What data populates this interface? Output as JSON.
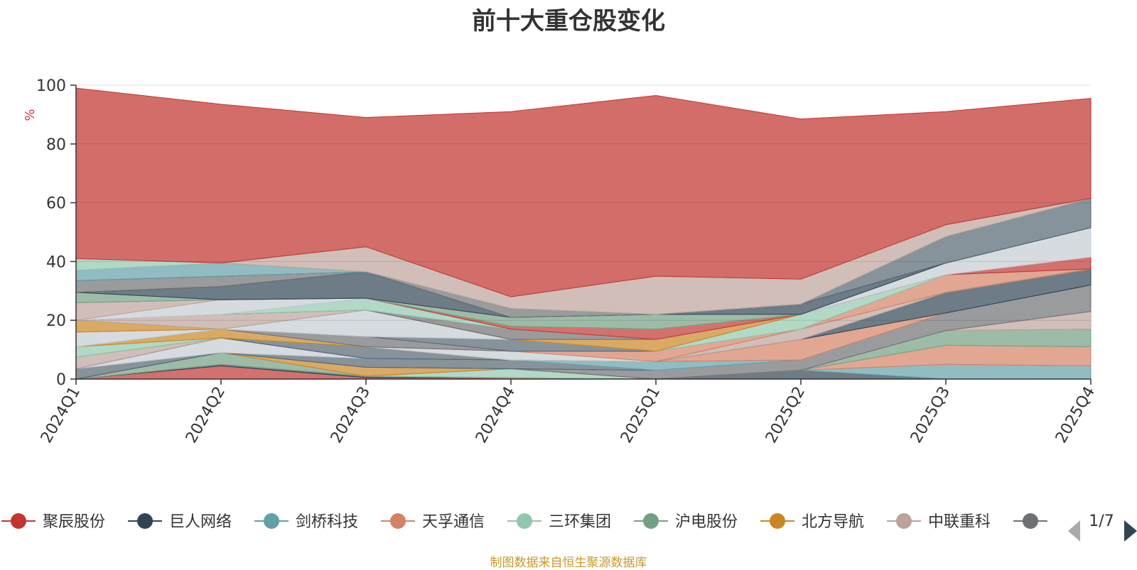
{
  "chart_data": {
    "type": "area",
    "title": "前十大重仓股变化",
    "ylabel": "%",
    "ylim": [
      0,
      100
    ],
    "yticks": [
      0,
      20,
      40,
      60,
      80,
      100
    ],
    "categories": [
      "2024Q1",
      "2024Q2",
      "2024Q3",
      "2024Q4",
      "2025Q1",
      "2025Q2",
      "2025Q3",
      "2025Q4"
    ],
    "grid": true,
    "stacked": true,
    "series": [
      {
        "name": "聚辰股份",
        "color": "#c23531",
        "values": [
          0,
          4.5,
          0.5,
          0.5,
          0,
          0,
          0,
          0
        ]
      },
      {
        "name": "巨人网络",
        "color": "#2f4554",
        "values": [
          0,
          0.5,
          0.5,
          0,
          0,
          3,
          0,
          0
        ]
      },
      {
        "name": "剑桥科技",
        "color": "#61a0a8",
        "values": [
          0,
          0,
          0,
          0,
          0,
          0,
          5,
          4.5
        ]
      },
      {
        "name": "天孚通信",
        "color": "#d48265",
        "values": [
          0,
          0,
          0,
          0,
          0,
          0,
          6.5,
          6.5
        ]
      },
      {
        "name": "三环集团",
        "color": "#91c7ae",
        "values": [
          0,
          0,
          0,
          3,
          0,
          0,
          0,
          0
        ]
      },
      {
        "name": "沪电股份",
        "color": "#749f83",
        "values": [
          0,
          4,
          0,
          0,
          0,
          0,
          5,
          6
        ]
      },
      {
        "name": "北方导航",
        "color": "#ca8622",
        "values": [
          0,
          0,
          3,
          0,
          0,
          0,
          0,
          0
        ]
      },
      {
        "name": "中联重科",
        "color": "#bda29a",
        "values": [
          0,
          0,
          0,
          0,
          0,
          0,
          0,
          6
        ]
      },
      {
        "name": "",
        "color": "#6e7074",
        "values": [
          0,
          0,
          0,
          0,
          3,
          3.5,
          6,
          9
        ]
      },
      {
        "name": "",
        "color": "#546570",
        "values": [
          3.5,
          0,
          3,
          3,
          0,
          0,
          0,
          0
        ]
      },
      {
        "name": "",
        "color": "#c4ccd3",
        "values": [
          0,
          5,
          0,
          0,
          0,
          0,
          0,
          0
        ]
      },
      {
        "name": "",
        "color": "#61a0a8",
        "values": [
          0,
          0,
          0,
          0,
          3,
          0,
          0,
          0
        ]
      },
      {
        "name": "",
        "color": "#d48265",
        "values": [
          0,
          0,
          0,
          0,
          0,
          7,
          0,
          0
        ]
      },
      {
        "name": "",
        "color": "#2f4554",
        "values": [
          0,
          0,
          0,
          0,
          0,
          0,
          7,
          5.5
        ]
      },
      {
        "name": "",
        "color": "#bda29a",
        "values": [
          4,
          0,
          0,
          0,
          0,
          3.5,
          0,
          0
        ]
      },
      {
        "name": "",
        "color": "#546570",
        "values": [
          0,
          0,
          4,
          0,
          0,
          0,
          0,
          0
        ]
      },
      {
        "name": "",
        "color": "#91c7ae",
        "values": [
          3.5,
          0,
          0,
          0,
          0,
          0,
          0,
          0
        ]
      },
      {
        "name": "",
        "color": "#ca8622",
        "values": [
          0,
          3,
          0,
          0,
          0,
          0,
          0,
          0
        ]
      },
      {
        "name": "",
        "color": "#c4ccd3",
        "values": [
          0,
          0,
          0,
          3,
          0,
          0,
          0,
          0
        ]
      },
      {
        "name": "",
        "color": "#d48265",
        "values": [
          0,
          0,
          0,
          0,
          3.5,
          0,
          6,
          0
        ]
      },
      {
        "name": "",
        "color": "#6e7074",
        "values": [
          0,
          0,
          3.5,
          0,
          0,
          0,
          0,
          0
        ]
      },
      {
        "name": "",
        "color": "#c4ccd3",
        "values": [
          5,
          0,
          0,
          0,
          0,
          0,
          0,
          0
        ]
      },
      {
        "name": "",
        "color": "#546570",
        "values": [
          0,
          0,
          0,
          4,
          0,
          0,
          0,
          0
        ]
      },
      {
        "name": "",
        "color": "#bda29a",
        "values": [
          0,
          0,
          0,
          0,
          0,
          0,
          0,
          0
        ]
      },
      {
        "name": "",
        "color": "#c4ccd3",
        "values": [
          0,
          0,
          9,
          0,
          0,
          0,
          0,
          0
        ]
      },
      {
        "name": "",
        "color": "#ca8622",
        "values": [
          4,
          0,
          0,
          0,
          0,
          0,
          0,
          0
        ]
      },
      {
        "name": "",
        "color": "#91c7ae",
        "values": [
          0,
          0,
          0,
          0,
          0,
          5,
          0,
          0
        ]
      },
      {
        "name": "",
        "color": "#bda29a",
        "values": [
          0,
          5,
          0,
          0,
          0,
          0,
          0,
          0
        ]
      },
      {
        "name": "",
        "color": "#ca8622",
        "values": [
          0,
          0,
          0,
          0,
          4,
          0,
          0,
          0
        ]
      },
      {
        "name": "",
        "color": "#6e7074",
        "values": [
          0,
          0,
          0,
          3.5,
          0,
          0,
          0,
          0
        ]
      },
      {
        "name": "",
        "color": "#91c7ae",
        "values": [
          0,
          0,
          4,
          0,
          0,
          0,
          0,
          0
        ]
      },
      {
        "name": "",
        "color": "#c4ccd3",
        "values": [
          0,
          5,
          0,
          0,
          0,
          0,
          0,
          0
        ]
      },
      {
        "name": "",
        "color": "#bda29a",
        "values": [
          6,
          0,
          0,
          0,
          0,
          0,
          0,
          0
        ]
      },
      {
        "name": "",
        "color": "#c23531",
        "values": [
          0,
          0,
          0,
          1,
          3.5,
          0,
          0,
          4
        ]
      },
      {
        "name": "",
        "color": "#c4ccd3",
        "values": [
          0,
          0,
          0,
          0,
          0,
          0,
          4,
          10
        ]
      },
      {
        "name": "",
        "color": "#749f83",
        "values": [
          3.5,
          0,
          0,
          3,
          5,
          0,
          0,
          0
        ]
      },
      {
        "name": "",
        "color": "#2f4554",
        "values": [
          0,
          4.5,
          9,
          0,
          0,
          3.5,
          0,
          0
        ]
      },
      {
        "name": "",
        "color": "#6e7074",
        "values": [
          4,
          3.5,
          0,
          3,
          0,
          0,
          0,
          0
        ]
      },
      {
        "name": "",
        "color": "#546570",
        "values": [
          0,
          0,
          0,
          0,
          0,
          0,
          9,
          10
        ]
      },
      {
        "name": "",
        "color": "#61a0a8",
        "values": [
          3.5,
          4.5,
          0,
          0,
          0,
          0,
          0,
          0
        ]
      },
      {
        "name": "",
        "color": "#bda29a",
        "values": [
          0,
          0,
          8.5,
          4,
          13,
          8.5,
          4,
          0
        ]
      },
      {
        "name": "",
        "color": "#91c7ae",
        "values": [
          4,
          0,
          0,
          0,
          0,
          0,
          0,
          0
        ]
      },
      {
        "name": "",
        "color": "#c23531",
        "values": [
          58,
          54,
          44,
          63,
          61.5,
          54.5,
          38.5,
          34
        ]
      }
    ]
  },
  "legend": {
    "items": [
      {
        "label": "聚辰股份",
        "color": "#c23531"
      },
      {
        "label": "巨人网络",
        "color": "#2f4554"
      },
      {
        "label": "剑桥科技",
        "color": "#61a0a8"
      },
      {
        "label": "天孚通信",
        "color": "#d48265"
      },
      {
        "label": "三环集团",
        "color": "#91c7ae"
      },
      {
        "label": "沪电股份",
        "color": "#749f83"
      },
      {
        "label": "北方导航",
        "color": "#ca8622"
      },
      {
        "label": "中联重科",
        "color": "#bda29a"
      },
      {
        "label": "",
        "color": "#6e7074"
      }
    ],
    "page_indicator": "1/7",
    "prev_icon": "triangle-left-icon",
    "next_icon": "triangle-right-icon"
  },
  "source_note": "制图数据来自恒生聚源数据库"
}
